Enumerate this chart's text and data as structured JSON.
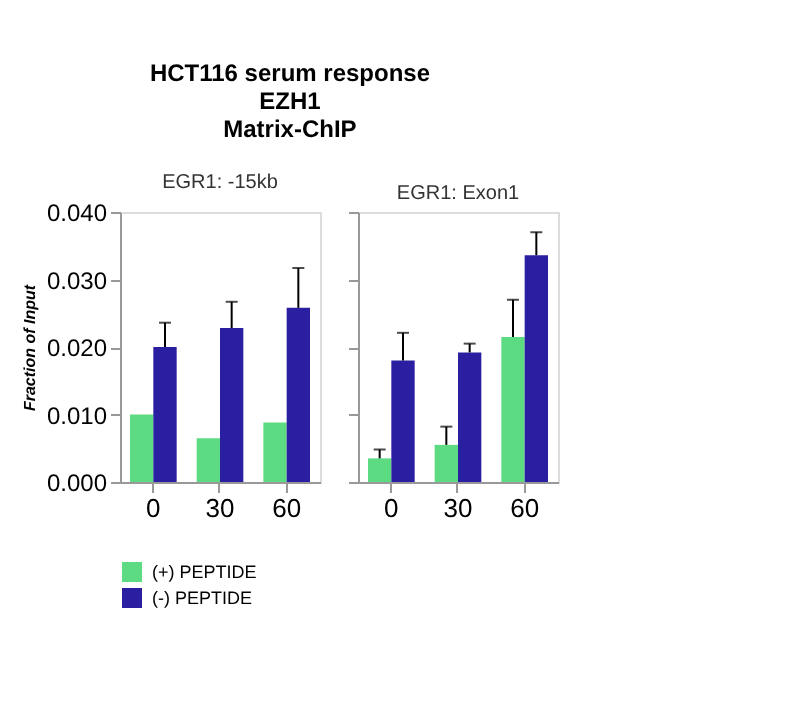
{
  "chart_data": [
    {
      "type": "bar",
      "title": "HCT116 serum response\nEZH1\nMatrix-ChIP",
      "subtitle": "EGR1: -15kb",
      "ylabel": "Fraction of Input",
      "categories": [
        "0",
        "30",
        "60"
      ],
      "ylim": [
        0,
        0.04
      ],
      "yticks": [
        {
          "value": 0,
          "label": "0.000"
        },
        {
          "value": 0.01,
          "label": "0.010"
        },
        {
          "value": 0.02,
          "label": "0.020"
        },
        {
          "value": 0.03,
          "label": "0.030"
        },
        {
          "value": 0.04,
          "label": "0.040"
        }
      ],
      "grid": false,
      "legend": "bottom",
      "series": [
        {
          "name": "(+) PEPTIDE",
          "color": "#5ddb82",
          "values": [
            0.01,
            0.0065,
            0.0088
          ]
        },
        {
          "name": "(-) PEPTIDE",
          "color": "#2a1fa0",
          "values": [
            0.02,
            0.0228,
            0.0258
          ],
          "errors": [
            [
              0.02,
              0.0236
            ],
            [
              0.0228,
              0.0267
            ],
            [
              0.0258,
              0.0317
            ]
          ]
        }
      ]
    },
    {
      "type": "bar",
      "subtitle": "EGR1: Exon1",
      "categories": [
        "0",
        "30",
        "60"
      ],
      "ylim": [
        0,
        0.04
      ],
      "yticks": [
        0,
        0.01,
        0.02,
        0.03,
        0.04
      ],
      "tick_labels": "x",
      "grid": false,
      "legend": "bottom",
      "series": [
        {
          "name": "(+) PEPTIDE",
          "color": "#5ddb82",
          "values": [
            0.0035,
            0.0055,
            0.0215
          ],
          "errors": [
            [
              0.0035,
              0.0048
            ],
            [
              0.0055,
              0.0082
            ],
            [
              0.0215,
              0.027
            ]
          ]
        },
        {
          "name": "(-) PEPTIDE",
          "color": "#2a1fa0",
          "values": [
            0.018,
            0.0192,
            0.0336
          ],
          "errors": [
            [
              0.018,
              0.0221
            ],
            [
              0.0192,
              0.0205
            ],
            [
              0.0336,
              0.037
            ]
          ]
        }
      ]
    }
  ]
}
